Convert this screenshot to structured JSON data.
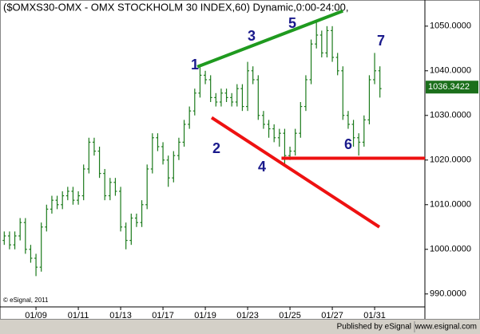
{
  "chart_data": {
    "type": "ohlc",
    "title": "($OMXS30-OMX - OMX STOCKHOLM 30 INDEX,60) Dynamic,0:00-24:00,",
    "copyright": "© eSignal, 2011",
    "footer": {
      "published": "Published by eSignal",
      "site": "www.esignal.com"
    },
    "categories": [
      null,
      null,
      null,
      null,
      null,
      null,
      "01/09",
      null,
      null,
      null,
      null,
      null,
      null,
      null,
      "01/11",
      null,
      null,
      null,
      null,
      null,
      null,
      null,
      "01/13",
      null,
      null,
      null,
      null,
      null,
      null,
      null,
      "01/17",
      null,
      null,
      null,
      null,
      null,
      null,
      null,
      "01/19",
      null,
      null,
      null,
      null,
      null,
      null,
      null,
      "01/23",
      null,
      null,
      null,
      null,
      null,
      null,
      null,
      "01/25",
      null,
      null,
      null,
      null,
      null,
      null,
      null,
      "01/27",
      null,
      null,
      null,
      null,
      null,
      null,
      null,
      "01/31",
      null
    ],
    "open": [
      1002,
      1003,
      1001,
      1003,
      1006,
      1000,
      998,
      996,
      1005,
      1009,
      1011,
      1010,
      1012,
      1013,
      1011,
      1012,
      1018,
      1024,
      1022,
      1017,
      1012,
      1015,
      1013,
      1005,
      1002,
      1007,
      1006,
      1010,
      1018,
      1025,
      1023,
      1020,
      1016,
      1021,
      1024,
      1028,
      1031,
      1035,
      1039,
      1038,
      1034,
      1033,
      1035,
      1034,
      1033,
      1036,
      1032,
      1040,
      1038,
      1030,
      1028,
      1027,
      1025,
      1026,
      1021,
      1022,
      1026,
      1032,
      1038,
      1046,
      1048,
      1044,
      1049,
      1043,
      1040,
      1030,
      1028,
      1025,
      1024,
      1029,
      1038,
      1040
    ],
    "high": [
      1004,
      1004,
      1004,
      1007,
      1007,
      1001,
      999,
      1006,
      1010,
      1012,
      1012,
      1013,
      1014,
      1014,
      1013,
      1019,
      1025,
      1025,
      1023,
      1018,
      1016,
      1016,
      1014,
      1006,
      1008,
      1008,
      1011,
      1019,
      1026,
      1026,
      1024,
      1021,
      1022,
      1025,
      1029,
      1032,
      1036,
      1041,
      1040,
      1039,
      1035,
      1036,
      1036,
      1035,
      1037,
      1037,
      1042,
      1041,
      1039,
      1031,
      1029,
      1028,
      1027,
      1027,
      1023,
      1027,
      1033,
      1039,
      1047,
      1051,
      1049,
      1050,
      1050,
      1044,
      1041,
      1031,
      1029,
      1026,
      1030,
      1039,
      1044,
      1041
    ],
    "low": [
      1001,
      1000,
      1000,
      1002,
      999,
      997,
      994,
      995,
      1004,
      1008,
      1009,
      1009,
      1011,
      1010,
      1010,
      1011,
      1017,
      1021,
      1016,
      1011,
      1011,
      1012,
      1004,
      1000,
      1001,
      1005,
      1005,
      1009,
      1017,
      1022,
      1019,
      1014,
      1015,
      1020,
      1023,
      1027,
      1030,
      1034,
      1037,
      1033,
      1032,
      1032,
      1033,
      1032,
      1032,
      1031,
      1031,
      1037,
      1029,
      1027,
      1025,
      1024,
      1023,
      1019,
      1020,
      1021,
      1025,
      1031,
      1037,
      1045,
      1043,
      1043,
      1042,
      1039,
      1029,
      1027,
      1023,
      1021,
      1023,
      1028,
      1037,
      1034
    ],
    "close": [
      1003,
      1001,
      1003,
      1006,
      1000,
      998,
      996,
      1005,
      1009,
      1011,
      1010,
      1012,
      1013,
      1011,
      1012,
      1018,
      1024,
      1022,
      1017,
      1012,
      1015,
      1013,
      1005,
      1002,
      1007,
      1006,
      1010,
      1018,
      1025,
      1023,
      1020,
      1016,
      1021,
      1024,
      1028,
      1031,
      1035,
      1039,
      1038,
      1034,
      1033,
      1035,
      1034,
      1033,
      1036,
      1032,
      1040,
      1038,
      1030,
      1028,
      1027,
      1025,
      1026,
      1021,
      1022,
      1026,
      1032,
      1038,
      1046,
      1048,
      1044,
      1049,
      1043,
      1040,
      1030,
      1028,
      1025,
      1024,
      1029,
      1038,
      1040,
      1036
    ],
    "color": "#1b7a1b",
    "last_price": 1036.3422,
    "ylim": [
      987.1,
      1055.5
    ],
    "yticks": [
      {
        "value": 990,
        "label": "990.0000"
      },
      {
        "value": 1000,
        "label": "1000.0000"
      },
      {
        "value": 1010,
        "label": "1010.0000"
      },
      {
        "value": 1020,
        "label": "1020.0000"
      },
      {
        "value": 1030,
        "label": "1030.0000"
      },
      {
        "value": 1040,
        "label": "1040.0000"
      },
      {
        "value": 1050,
        "label": "1050.0000"
      }
    ],
    "grid": false,
    "trendlines": [
      {
        "color": "#1f9a1f",
        "x": [
          36.5,
          64
        ],
        "values": [
          1040.9,
          1053.4
        ]
      },
      {
        "color": "#ee1111",
        "x": [
          39.2,
          70.9
        ],
        "values": [
          1029.5,
          1005
        ]
      },
      {
        "color": "#ee1111",
        "x": [
          52.4,
          79.5
        ],
        "values": [
          1020.4,
          1020.4
        ]
      }
    ],
    "annotations": [
      "1",
      "2",
      "3",
      "4",
      "5",
      "6",
      "7"
    ]
  }
}
